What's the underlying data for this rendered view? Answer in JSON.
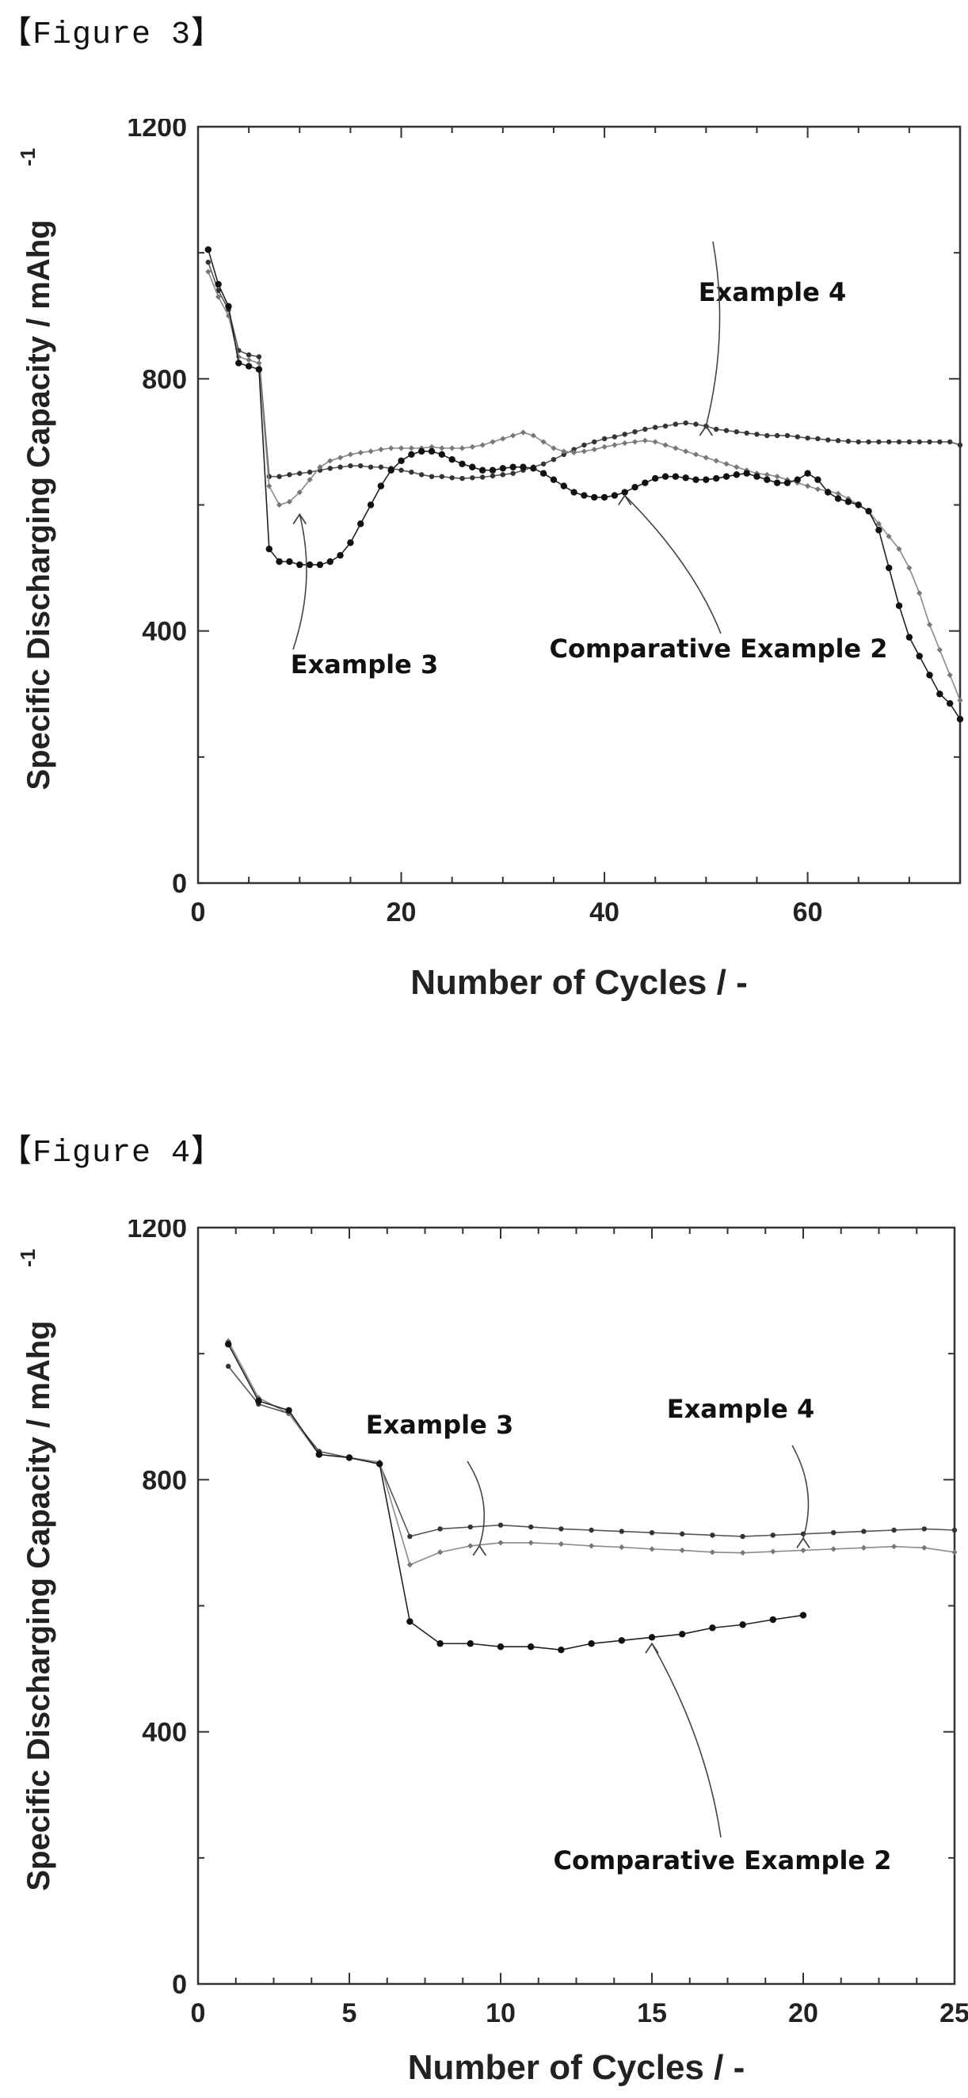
{
  "figures": [
    {
      "label": "【Figure 3】"
    },
    {
      "label": "【Figure 4】"
    }
  ],
  "chart_data": [
    {
      "type": "line",
      "title": "",
      "xlabel": "Number of Cycles / -",
      "ylabel": "Specific Discharging Capacity / mAhg",
      "ylabel_superscript": "-1",
      "xlim": [
        0,
        75
      ],
      "ylim": [
        0,
        1200
      ],
      "x_ticks": [
        0,
        20,
        40,
        60
      ],
      "y_ticks": [
        0,
        400,
        800,
        1200
      ],
      "grid": false,
      "annotations": [
        {
          "text": "Example 4",
          "target_x": 50,
          "target_y": 730
        },
        {
          "text": "Example 3",
          "target_x": 10,
          "target_y": 590
        },
        {
          "text": "Comparative Example 2",
          "target_x": 42,
          "target_y": 620
        }
      ],
      "series": [
        {
          "name": "Example 4",
          "x": [
            1,
            2,
            3,
            4,
            5,
            6,
            7,
            8,
            9,
            10,
            11,
            12,
            13,
            14,
            15,
            16,
            17,
            18,
            19,
            20,
            21,
            22,
            23,
            24,
            25,
            26,
            27,
            28,
            29,
            30,
            31,
            32,
            33,
            34,
            35,
            36,
            37,
            38,
            39,
            40,
            41,
            42,
            43,
            44,
            45,
            46,
            47,
            48,
            49,
            50,
            51,
            52,
            53,
            54,
            55,
            56,
            57,
            58,
            59,
            60,
            61,
            62,
            63,
            64,
            65,
            66,
            67,
            68,
            69,
            70,
            71,
            72,
            73,
            74,
            75
          ],
          "y": [
            985,
            940,
            910,
            845,
            838,
            835,
            645,
            645,
            648,
            650,
            652,
            655,
            658,
            660,
            662,
            662,
            660,
            660,
            658,
            655,
            652,
            648,
            645,
            645,
            643,
            642,
            643,
            644,
            646,
            648,
            650,
            655,
            660,
            665,
            672,
            680,
            688,
            695,
            700,
            705,
            708,
            712,
            716,
            720,
            723,
            725,
            728,
            730,
            728,
            725,
            720,
            718,
            716,
            714,
            712,
            710,
            710,
            710,
            708,
            706,
            705,
            703,
            702,
            701,
            700,
            700,
            700,
            700,
            700,
            700,
            700,
            700,
            700,
            700,
            695
          ]
        },
        {
          "name": "Example 3",
          "x": [
            1,
            2,
            3,
            4,
            5,
            6,
            7,
            8,
            9,
            10,
            11,
            12,
            13,
            14,
            15,
            16,
            17,
            18,
            19,
            20,
            21,
            22,
            23,
            24,
            25,
            26,
            27,
            28,
            29,
            30,
            31,
            32,
            33,
            34,
            35,
            36,
            37,
            38,
            39,
            40,
            41,
            42,
            43,
            44,
            45,
            46,
            47,
            48,
            49,
            50,
            51,
            52,
            53,
            54,
            55,
            56,
            57,
            58,
            59,
            60,
            61,
            62,
            63,
            64,
            65,
            66,
            67,
            68,
            69,
            70,
            71,
            72,
            73,
            74,
            75
          ],
          "y": [
            970,
            930,
            900,
            835,
            830,
            825,
            630,
            600,
            605,
            620,
            640,
            660,
            670,
            675,
            680,
            683,
            685,
            688,
            690,
            690,
            690,
            690,
            692,
            690,
            690,
            690,
            692,
            695,
            700,
            705,
            710,
            715,
            710,
            700,
            690,
            685,
            683,
            685,
            688,
            692,
            695,
            698,
            700,
            702,
            700,
            695,
            690,
            685,
            680,
            675,
            670,
            665,
            660,
            655,
            650,
            648,
            645,
            640,
            635,
            630,
            625,
            622,
            618,
            610,
            600,
            590,
            570,
            550,
            530,
            500,
            460,
            410,
            370,
            330,
            290
          ]
        },
        {
          "name": "Comparative Example 2",
          "x": [
            1,
            2,
            3,
            4,
            5,
            6,
            7,
            8,
            9,
            10,
            11,
            12,
            13,
            14,
            15,
            16,
            17,
            18,
            19,
            20,
            21,
            22,
            23,
            24,
            25,
            26,
            27,
            28,
            29,
            30,
            31,
            32,
            33,
            34,
            35,
            36,
            37,
            38,
            39,
            40,
            41,
            42,
            43,
            44,
            45,
            46,
            47,
            48,
            49,
            50,
            51,
            52,
            53,
            54,
            55,
            56,
            57,
            58,
            59,
            60,
            61,
            62,
            63,
            64,
            65,
            66,
            67,
            68,
            69,
            70,
            71,
            72,
            73,
            74,
            75
          ],
          "y": [
            1005,
            950,
            915,
            825,
            820,
            815,
            530,
            510,
            510,
            505,
            505,
            505,
            510,
            520,
            540,
            570,
            600,
            630,
            655,
            670,
            680,
            685,
            685,
            680,
            672,
            665,
            660,
            655,
            655,
            658,
            660,
            660,
            658,
            650,
            640,
            630,
            620,
            615,
            612,
            612,
            615,
            620,
            628,
            635,
            642,
            645,
            645,
            643,
            640,
            640,
            642,
            645,
            648,
            650,
            645,
            640,
            635,
            635,
            640,
            650,
            640,
            620,
            610,
            605,
            600,
            590,
            560,
            500,
            440,
            390,
            360,
            330,
            300,
            285,
            260
          ]
        }
      ]
    },
    {
      "type": "line",
      "title": "",
      "xlabel": "Number of Cycles / -",
      "ylabel": "Specific Discharging Capacity / mAhg",
      "ylabel_superscript": "-1",
      "xlim": [
        0,
        25
      ],
      "ylim": [
        0,
        1200
      ],
      "x_ticks": [
        0,
        5,
        10,
        15,
        20,
        25
      ],
      "y_ticks": [
        0,
        400,
        800,
        1200
      ],
      "grid": false,
      "annotations": [
        {
          "text": "Example 3",
          "target_x": 9.3,
          "target_y": 700
        },
        {
          "text": "Example 4",
          "target_x": 20,
          "target_y": 712
        },
        {
          "text": "Comparative Example 2",
          "target_x": 15,
          "target_y": 545
        }
      ],
      "series": [
        {
          "name": "Example 4",
          "x": [
            1,
            2,
            3,
            4,
            5,
            6,
            7,
            8,
            9,
            10,
            11,
            12,
            13,
            14,
            15,
            16,
            17,
            18,
            19,
            20,
            21,
            22,
            23,
            24,
            25
          ],
          "y": [
            980,
            920,
            905,
            845,
            835,
            825,
            710,
            722,
            725,
            728,
            725,
            722,
            720,
            718,
            716,
            714,
            712,
            710,
            712,
            714,
            716,
            718,
            720,
            722,
            720
          ]
        },
        {
          "name": "Example 3",
          "x": [
            1,
            2,
            3,
            4,
            5,
            6,
            7,
            8,
            9,
            10,
            11,
            12,
            13,
            14,
            15,
            16,
            17,
            18,
            19,
            20,
            21,
            22,
            23,
            24,
            25
          ],
          "y": [
            1020,
            930,
            905,
            840,
            835,
            828,
            665,
            685,
            695,
            700,
            700,
            698,
            695,
            693,
            690,
            688,
            685,
            684,
            686,
            688,
            690,
            692,
            694,
            692,
            685
          ]
        },
        {
          "name": "Comparative Example 2",
          "x": [
            1,
            2,
            3,
            4,
            5,
            6,
            7,
            8,
            9,
            10,
            11,
            12,
            13,
            14,
            15,
            16,
            17,
            18,
            19,
            20
          ],
          "y": [
            1015,
            925,
            910,
            840,
            835,
            825,
            575,
            540,
            540,
            535,
            535,
            530,
            540,
            545,
            550,
            555,
            565,
            570,
            578,
            585
          ]
        }
      ]
    }
  ]
}
